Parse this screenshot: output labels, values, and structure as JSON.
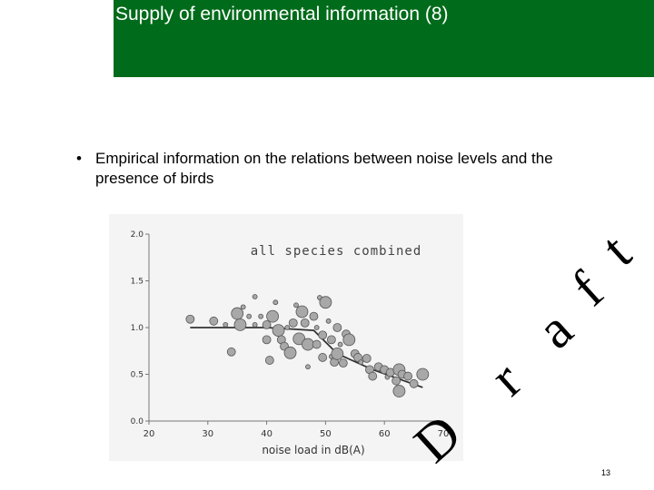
{
  "slide": {
    "title": "Supply of environmental information (8)",
    "bullet_symbol": "•",
    "bullet_text": "Empirical information on the relations between noise levels and the presence of birds",
    "watermark_letters": [
      "D",
      "r",
      "a",
      "f",
      "t"
    ],
    "page_number": "13",
    "colors": {
      "title_bar": "#006b1a",
      "title_text": "#ffffff"
    }
  },
  "chart_data": {
    "type": "scatter",
    "title": "all species combined",
    "xlabel": "noise load in dB(A)",
    "ylabel": "",
    "xlim": [
      20,
      70
    ],
    "ylim": [
      0,
      2.0
    ],
    "x_ticks": [
      "20",
      "30",
      "40",
      "50",
      "60",
      "70"
    ],
    "y_ticks": [
      "0.0",
      "0.5",
      "1.0",
      "1.5",
      "2.0"
    ],
    "points": [
      {
        "x": 27,
        "y": 1.09,
        "s": 2
      },
      {
        "x": 31,
        "y": 1.07,
        "s": 2
      },
      {
        "x": 33,
        "y": 1.03,
        "s": 1
      },
      {
        "x": 34,
        "y": 0.74,
        "s": 2
      },
      {
        "x": 35,
        "y": 1.15,
        "s": 3
      },
      {
        "x": 35.5,
        "y": 1.03,
        "s": 3
      },
      {
        "x": 36,
        "y": 1.22,
        "s": 1
      },
      {
        "x": 37,
        "y": 1.12,
        "s": 1
      },
      {
        "x": 38,
        "y": 1.33,
        "s": 1
      },
      {
        "x": 38,
        "y": 1.03,
        "s": 1
      },
      {
        "x": 39,
        "y": 1.12,
        "s": 1
      },
      {
        "x": 40,
        "y": 1.03,
        "s": 2
      },
      {
        "x": 40,
        "y": 0.87,
        "s": 2
      },
      {
        "x": 40.5,
        "y": 0.65,
        "s": 2
      },
      {
        "x": 41,
        "y": 1.12,
        "s": 3
      },
      {
        "x": 41.5,
        "y": 1.27,
        "s": 1
      },
      {
        "x": 42,
        "y": 0.97,
        "s": 3
      },
      {
        "x": 42.5,
        "y": 0.87,
        "s": 2
      },
      {
        "x": 43,
        "y": 0.8,
        "s": 2
      },
      {
        "x": 43.5,
        "y": 1.0,
        "s": 1
      },
      {
        "x": 44,
        "y": 0.73,
        "s": 3
      },
      {
        "x": 44.5,
        "y": 1.05,
        "s": 2
      },
      {
        "x": 45,
        "y": 1.24,
        "s": 1
      },
      {
        "x": 45.5,
        "y": 0.88,
        "s": 3
      },
      {
        "x": 46,
        "y": 1.17,
        "s": 3
      },
      {
        "x": 46.5,
        "y": 1.05,
        "s": 2
      },
      {
        "x": 47,
        "y": 0.58,
        "s": 1
      },
      {
        "x": 47,
        "y": 0.82,
        "s": 3
      },
      {
        "x": 48,
        "y": 1.12,
        "s": 2
      },
      {
        "x": 48.5,
        "y": 1.0,
        "s": 1
      },
      {
        "x": 48.5,
        "y": 0.82,
        "s": 2
      },
      {
        "x": 49,
        "y": 1.32,
        "s": 1
      },
      {
        "x": 49.5,
        "y": 0.92,
        "s": 2
      },
      {
        "x": 49.5,
        "y": 0.68,
        "s": 2
      },
      {
        "x": 50,
        "y": 1.27,
        "s": 3
      },
      {
        "x": 50.5,
        "y": 1.07,
        "s": 1
      },
      {
        "x": 51,
        "y": 0.87,
        "s": 2
      },
      {
        "x": 51,
        "y": 0.69,
        "s": 1
      },
      {
        "x": 51.5,
        "y": 0.63,
        "s": 2
      },
      {
        "x": 52,
        "y": 1.0,
        "s": 2
      },
      {
        "x": 52,
        "y": 0.72,
        "s": 3
      },
      {
        "x": 52.5,
        "y": 0.82,
        "s": 1
      },
      {
        "x": 53,
        "y": 0.62,
        "s": 2
      },
      {
        "x": 53.5,
        "y": 0.93,
        "s": 2
      },
      {
        "x": 54,
        "y": 0.87,
        "s": 3
      },
      {
        "x": 55,
        "y": 0.72,
        "s": 2
      },
      {
        "x": 55.5,
        "y": 0.68,
        "s": 2
      },
      {
        "x": 56,
        "y": 0.63,
        "s": 1
      },
      {
        "x": 57,
        "y": 0.67,
        "s": 2
      },
      {
        "x": 57.5,
        "y": 0.55,
        "s": 2
      },
      {
        "x": 58,
        "y": 0.48,
        "s": 2
      },
      {
        "x": 59,
        "y": 0.58,
        "s": 2
      },
      {
        "x": 60,
        "y": 0.55,
        "s": 2
      },
      {
        "x": 60.5,
        "y": 0.47,
        "s": 1
      },
      {
        "x": 61,
        "y": 0.52,
        "s": 2
      },
      {
        "x": 62,
        "y": 0.43,
        "s": 2
      },
      {
        "x": 62.5,
        "y": 0.55,
        "s": 3
      },
      {
        "x": 62.5,
        "y": 0.32,
        "s": 3
      },
      {
        "x": 63,
        "y": 0.5,
        "s": 2
      },
      {
        "x": 64,
        "y": 0.48,
        "s": 2
      },
      {
        "x": 65,
        "y": 0.4,
        "s": 2
      },
      {
        "x": 66.5,
        "y": 0.5,
        "s": 3
      }
    ],
    "fit_line": {
      "x": [
        27,
        40,
        48,
        52,
        58,
        66.5
      ],
      "y": [
        1.0,
        1.0,
        0.97,
        0.72,
        0.55,
        0.36
      ]
    }
  }
}
